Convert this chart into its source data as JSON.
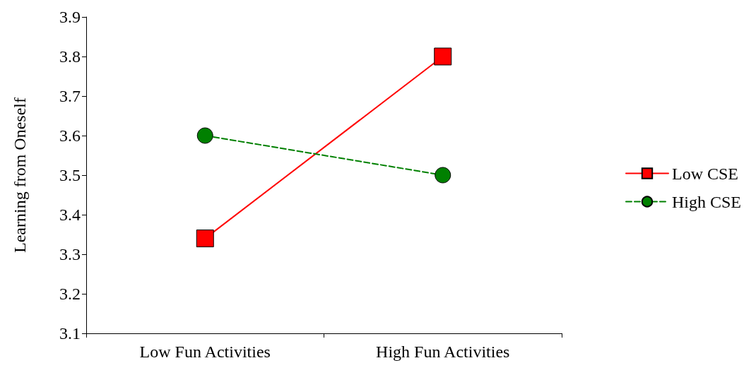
{
  "chart_data": {
    "type": "line",
    "ylabel": "Learning from Oneself",
    "categories": [
      "Low Fun Activities",
      "High Fun Activities"
    ],
    "series": [
      {
        "name": "Low CSE",
        "color": "#ff0000",
        "values": [
          3.34,
          3.8
        ],
        "marker": "square",
        "line_style": "solid"
      },
      {
        "name": "High CSE",
        "color": "#008000",
        "values": [
          3.6,
          3.5
        ],
        "marker": "circle",
        "line_style": "dashed"
      }
    ],
    "ylim": [
      3.1,
      3.9
    ],
    "yticks": [
      3.1,
      3.2,
      3.3,
      3.4,
      3.5,
      3.6,
      3.7,
      3.8,
      3.9
    ],
    "grid": false,
    "legend": "right"
  }
}
